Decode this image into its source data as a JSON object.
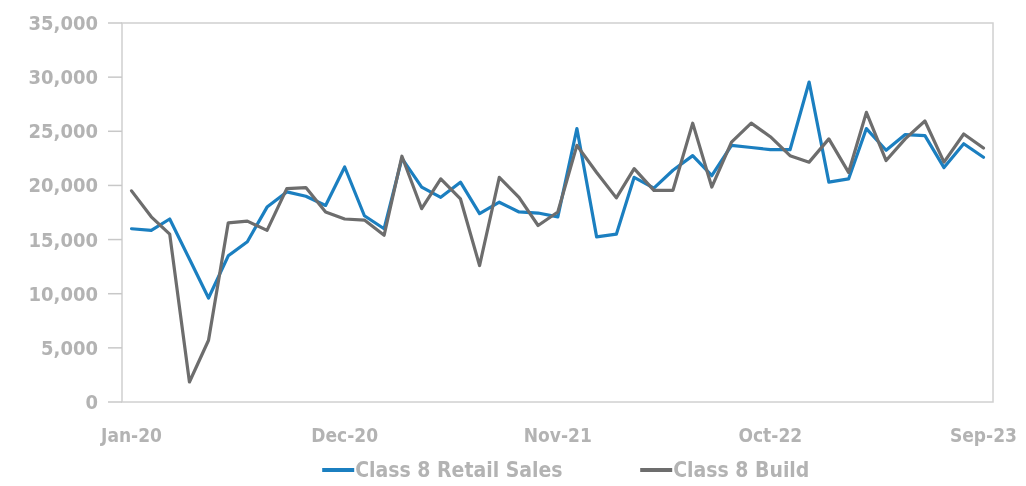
{
  "chart_data": {
    "type": "line",
    "x": [
      "2020-01",
      "2020-02",
      "2020-03",
      "2020-04",
      "2020-05",
      "2020-06",
      "2020-07",
      "2020-08",
      "2020-09",
      "2020-10",
      "2020-11",
      "2020-12",
      "2021-01",
      "2021-02",
      "2021-03",
      "2021-04",
      "2021-05",
      "2021-06",
      "2021-07",
      "2021-08",
      "2021-09",
      "2021-10",
      "2021-11",
      "2021-12",
      "2022-01",
      "2022-02",
      "2022-03",
      "2022-04",
      "2022-05",
      "2022-06",
      "2022-07",
      "2022-08",
      "2022-09",
      "2022-10",
      "2022-11",
      "2022-12",
      "2023-01",
      "2023-02",
      "2023-03",
      "2023-04",
      "2023-05",
      "2023-06",
      "2023-07",
      "2023-08",
      "2023-09"
    ],
    "series": [
      {
        "name": "Class 8 Retail Sales",
        "color": "#1b7fc0",
        "values": [
          16000,
          15850,
          16900,
          13200,
          9600,
          13500,
          14800,
          18000,
          19400,
          19000,
          18150,
          21700,
          17200,
          16000,
          22500,
          19850,
          18900,
          20300,
          17400,
          18450,
          17550,
          17450,
          17100,
          25250,
          15250,
          15500,
          20750,
          19750,
          21400,
          22750,
          20900,
          23700,
          23500,
          23300,
          23300,
          29550,
          20300,
          20600,
          25250,
          23250,
          24700,
          24600,
          21650,
          23850,
          22600
        ]
      },
      {
        "name": "Class 8 Build",
        "color": "#6d6d6d",
        "values": [
          19500,
          17100,
          15500,
          1850,
          5700,
          16550,
          16700,
          15850,
          19700,
          19800,
          17550,
          16900,
          16800,
          15400,
          22700,
          17850,
          20600,
          18750,
          12600,
          20750,
          18900,
          16300,
          17550,
          23700,
          21200,
          18850,
          21550,
          19550,
          19550,
          25750,
          19850,
          24000,
          25750,
          24500,
          22750,
          22150,
          24300,
          21200,
          26750,
          22300,
          24300,
          25950,
          22150,
          24750,
          23450
        ]
      }
    ],
    "xlim": [
      "2019-12-17",
      "2023-09-16"
    ],
    "xticks": [
      {
        "value": "2020-01",
        "label": "Jan-20"
      },
      {
        "value": "2020-12",
        "label": "Dec-20"
      },
      {
        "value": "2021-11",
        "label": "Nov-21"
      },
      {
        "value": "2022-10",
        "label": "Oct-22"
      },
      {
        "value": "2023-09",
        "label": "Sep-23"
      }
    ],
    "ylim": [
      0,
      35000
    ],
    "yticks": [
      0,
      {
        "value": 5000,
        "label": "5,000"
      },
      {
        "value": 10000,
        "label": "10,000"
      },
      {
        "value": 15000,
        "label": "15,000"
      },
      {
        "value": 20000,
        "label": "20,000"
      },
      {
        "value": 25000,
        "label": "25,000"
      },
      {
        "value": 30000,
        "label": "30,000"
      },
      {
        "value": 35000,
        "label": "35,000"
      }
    ],
    "legend": "bottom"
  }
}
